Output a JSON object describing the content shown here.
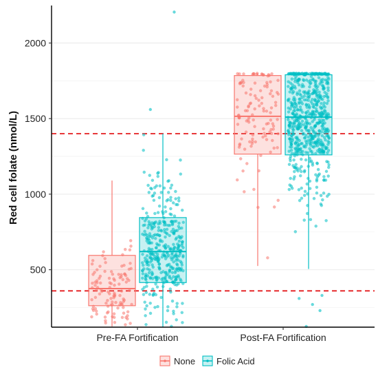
{
  "chart_data": {
    "type": "box-jitter",
    "title": "",
    "xlabel": "",
    "ylabel": "Red cell folate (nmol/L)",
    "ylim": [
      120,
      2230
    ],
    "yticks": [
      500,
      1000,
      1500,
      2000
    ],
    "grid": "horizontal",
    "legend_position": "bottom",
    "categories": [
      "Pre-FA Fortification",
      "Post-FA Fortification"
    ],
    "series": [
      {
        "name": "None",
        "color": "#F8766D",
        "boxes": [
          {
            "category": "Pre-FA Fortification",
            "q1": 262,
            "median": 375,
            "q3": 595,
            "whisker_low": 125,
            "whisker_high": 1090,
            "n_points": 110,
            "point_min": 130,
            "point_max": 1140
          },
          {
            "category": "Post-FA Fortification",
            "q1": 1265,
            "median": 1515,
            "q3": 1785,
            "whisker_low": 525,
            "whisker_high": 1800,
            "n_points": 120,
            "point_min": 530,
            "point_max": 1800
          }
        ],
        "outliers": []
      },
      {
        "name": "Folic Acid",
        "color": "#00BFC4",
        "boxes": [
          {
            "category": "Pre-FA Fortification",
            "q1": 415,
            "median": 620,
            "q3": 845,
            "whisker_low": 120,
            "whisker_high": 1400,
            "n_points": 400,
            "point_min": 125,
            "point_max": 1400
          },
          {
            "category": "Post-FA Fortification",
            "q1": 1260,
            "median": 1510,
            "q3": 1790,
            "whisker_low": 505,
            "whisker_high": 1800,
            "n_points": 650,
            "point_min": 510,
            "point_max": 1800
          }
        ],
        "outliers": [
          {
            "category": "Pre-FA Fortification",
            "y": 2205
          },
          {
            "category": "Pre-FA Fortification",
            "y": 1560
          },
          {
            "category": "Post-FA Fortification",
            "y": 330
          },
          {
            "category": "Post-FA Fortification",
            "y": 310
          },
          {
            "category": "Post-FA Fortification",
            "y": 270
          },
          {
            "category": "Post-FA Fortification",
            "y": 230
          },
          {
            "category": "Post-FA Fortification",
            "y": 125
          }
        ]
      }
    ],
    "reference_lines": [
      {
        "y": 1400,
        "color": "#E41A1C",
        "style": "dashed"
      },
      {
        "y": 360,
        "color": "#E41A1C",
        "style": "dashed"
      }
    ]
  }
}
